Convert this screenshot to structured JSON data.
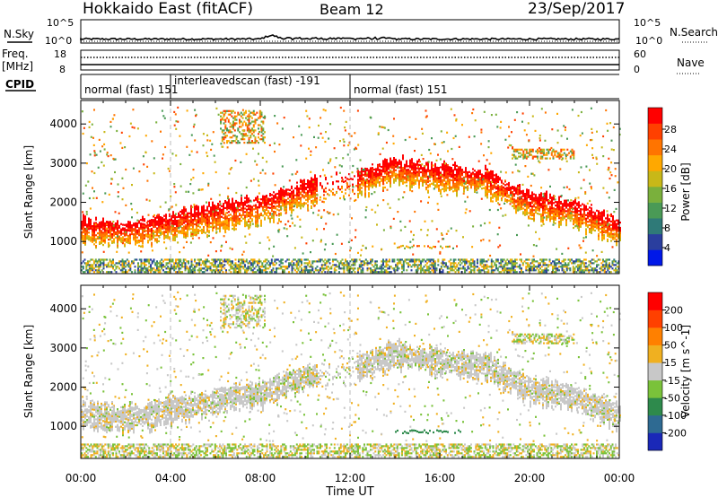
{
  "header": {
    "station": "Hokkaido East (fitACF)",
    "beam": "Beam 12",
    "date": "23/Sep/2017"
  },
  "noise_panel": {
    "left_label": "N.Sky",
    "right_label": "N.Search",
    "tick_top": "10^5",
    "tick_bottom": "10^0"
  },
  "freq_panel": {
    "left_label_line1": "Freq.",
    "left_label_line2": "[MHz]",
    "left_ticks": [
      "18",
      "8"
    ],
    "right_ticks": [
      "60",
      "0"
    ],
    "right_label": "Nave"
  },
  "cpid_panel": {
    "label": "CPID",
    "segments": [
      {
        "name": "normal (fast)",
        "id": "151",
        "start_h": 0,
        "end_h": 4
      },
      {
        "name": "interleavedscan (fast)",
        "id": "-191",
        "start_h": 4,
        "end_h": 12
      },
      {
        "name": "normal (fast)",
        "id": "151",
        "start_h": 12,
        "end_h": 24
      }
    ]
  },
  "chart_data": [
    {
      "type": "heatmap",
      "title": "",
      "xlabel": "Time UT",
      "ylabel": "Slant Range [km]",
      "xlim": [
        0,
        24
      ],
      "ylim": [
        180,
        4600
      ],
      "x_ticks": [
        "00:00",
        "04:00",
        "08:00",
        "12:00",
        "16:00",
        "20:00",
        "00:00"
      ],
      "y_ticks": [
        "1000",
        "2000",
        "3000",
        "4000"
      ],
      "colorbar": {
        "label": "Power [dB]",
        "ticks": [
          "28",
          "24",
          "20",
          "16",
          "12",
          "8",
          "4"
        ],
        "range": [
          0,
          30
        ],
        "colors": [
          "#0018e8",
          "#2a3e9e",
          "#2f7a78",
          "#4a9a56",
          "#7ab03c",
          "#c8b818",
          "#ffa800",
          "#ff7400",
          "#ff4000",
          "#ff0000"
        ]
      },
      "main_band_km": [
        [
          0,
          1350
        ],
        [
          2,
          1250
        ],
        [
          4,
          1450
        ],
        [
          6,
          1700
        ],
        [
          8,
          1900
        ],
        [
          10,
          2300
        ],
        [
          12,
          2500
        ],
        [
          14,
          2900
        ],
        [
          16,
          2700
        ],
        [
          18,
          2600
        ],
        [
          20,
          2000
        ],
        [
          22,
          1800
        ],
        [
          24,
          1300
        ]
      ],
      "vertical_markers_h": [
        4,
        12
      ]
    },
    {
      "type": "heatmap",
      "title": "",
      "xlabel": "Time UT",
      "ylabel": "Slant Range [km]",
      "xlim": [
        0,
        24
      ],
      "ylim": [
        180,
        4600
      ],
      "x_ticks": [
        "00:00",
        "04:00",
        "08:00",
        "12:00",
        "16:00",
        "20:00",
        "00:00"
      ],
      "y_ticks": [
        "1000",
        "2000",
        "3000",
        "4000"
      ],
      "colorbar": {
        "label": "Velocity [m s^-1]",
        "ticks": [
          "200",
          "100",
          "50",
          "15",
          "-15",
          "-50",
          "-100",
          "-200"
        ],
        "colors": [
          "#1a28b8",
          "#2e6a92",
          "#2e8a4c",
          "#7ac23a",
          "#c8c8c8",
          "#f0b020",
          "#ff8000",
          "#ff4000",
          "#ff0000"
        ]
      },
      "main_band_km": [
        [
          0,
          1350
        ],
        [
          2,
          1250
        ],
        [
          4,
          1450
        ],
        [
          6,
          1700
        ],
        [
          8,
          1900
        ],
        [
          10,
          2300
        ],
        [
          12,
          2500
        ],
        [
          14,
          2900
        ],
        [
          16,
          2700
        ],
        [
          18,
          2600
        ],
        [
          20,
          2000
        ],
        [
          22,
          1800
        ],
        [
          24,
          1300
        ]
      ],
      "vertical_markers_h": [
        4,
        12
      ]
    }
  ],
  "colors": {
    "axis": "#000000",
    "marker_line": "#bbbbbb",
    "ground_scatter": "#c0c0c0"
  }
}
